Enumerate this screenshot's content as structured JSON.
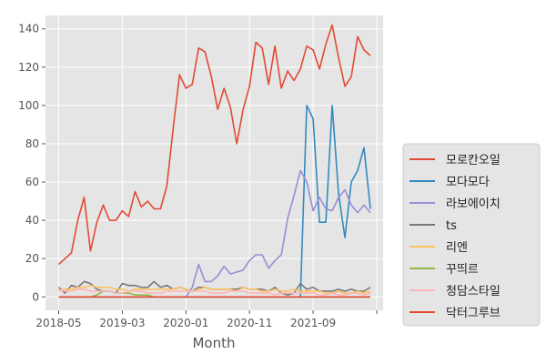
{
  "chart_data": {
    "type": "line",
    "xlabel": "Month",
    "ylabel": "",
    "ylim": [
      -7,
      147
    ],
    "yticks": [
      0,
      20,
      40,
      60,
      80,
      100,
      120,
      140
    ],
    "x": [
      "2018-05",
      "2018-06",
      "2018-07",
      "2018-08",
      "2018-09",
      "2018-10",
      "2018-11",
      "2018-12",
      "2019-01",
      "2019-02",
      "2019-03",
      "2019-04",
      "2019-05",
      "2019-06",
      "2019-07",
      "2019-08",
      "2019-09",
      "2019-10",
      "2019-11",
      "2019-12",
      "2020-01",
      "2020-02",
      "2020-03",
      "2020-04",
      "2020-05",
      "2020-06",
      "2020-07",
      "2020-08",
      "2020-09",
      "2020-10",
      "2020-11",
      "2020-12",
      "2021-01",
      "2021-02",
      "2021-03",
      "2021-04",
      "2021-05",
      "2021-06",
      "2021-07",
      "2021-08",
      "2021-09",
      "2021-10",
      "2021-11",
      "2021-12",
      "2022-01",
      "2022-02",
      "2022-03",
      "2022-04",
      "2022-05",
      "2022-06"
    ],
    "x_tick_labels": [
      {
        "label": "2018-05",
        "index": 0
      },
      {
        "label": "2019-03",
        "index": 10
      },
      {
        "label": "2020-01",
        "index": 20
      },
      {
        "label": "2020-11",
        "index": 30
      },
      {
        "label": "2021-09",
        "index": 40
      },
      {
        "label": "",
        "index": 50
      }
    ],
    "grid": true,
    "legend_position": "right",
    "series": [
      {
        "name": "모로칸오일",
        "color": "#E24A33",
        "values": [
          17,
          20,
          23,
          40,
          52,
          24,
          39,
          48,
          40,
          40,
          45,
          42,
          55,
          47,
          50,
          46,
          46,
          58,
          88,
          116,
          109,
          111,
          130,
          128,
          115,
          98,
          109,
          99,
          80,
          98,
          110,
          133,
          130,
          111,
          131,
          109,
          118,
          113,
          119,
          131,
          129,
          119,
          132,
          142,
          125,
          110,
          115,
          136,
          129,
          126
        ]
      },
      {
        "name": "모다모다",
        "color": "#348ABD",
        "values": [
          0,
          0,
          0,
          0,
          0,
          0,
          0,
          0,
          0,
          0,
          0,
          0,
          0,
          0,
          0,
          0,
          0,
          0,
          0,
          0,
          0,
          0,
          0,
          0,
          0,
          0,
          0,
          0,
          0,
          0,
          0,
          0,
          0,
          0,
          0,
          0,
          0,
          0,
          0,
          100,
          93,
          39,
          39,
          100,
          54,
          31,
          60,
          66,
          78,
          46
        ]
      },
      {
        "name": "라보에이치",
        "color": "#988ED5",
        "values": [
          null,
          null,
          null,
          null,
          null,
          null,
          null,
          null,
          null,
          null,
          null,
          null,
          null,
          null,
          null,
          null,
          null,
          null,
          null,
          null,
          0,
          5,
          17,
          8,
          8,
          11,
          16,
          12,
          13,
          14,
          19,
          22,
          22,
          15,
          19,
          22,
          41,
          53,
          66,
          60,
          45,
          52,
          46,
          45,
          52,
          56,
          48,
          44,
          48,
          44
        ]
      },
      {
        "name": "ts",
        "color": "#777777",
        "values": [
          5,
          2,
          6,
          5,
          8,
          7,
          4,
          3,
          3,
          2,
          7,
          6,
          6,
          5,
          5,
          8,
          5,
          6,
          4,
          5,
          4,
          3,
          5,
          5,
          4,
          4,
          4,
          4,
          4,
          5,
          4,
          4,
          4,
          3,
          5,
          2,
          1,
          2,
          7,
          4,
          5,
          3,
          3,
          3,
          4,
          3,
          4,
          3,
          3,
          5
        ]
      },
      {
        "name": "리엔",
        "color": "#FBC15E",
        "values": [
          3,
          4,
          4,
          5,
          5,
          6,
          5,
          5,
          5,
          4,
          4,
          3,
          4,
          4,
          4,
          4,
          4,
          4,
          4,
          5,
          4,
          3,
          4,
          5,
          4,
          4,
          4,
          4,
          3,
          5,
          4,
          4,
          3,
          3,
          4,
          3,
          3,
          4,
          3,
          3,
          3,
          3,
          2,
          2,
          3,
          2,
          2,
          3,
          2,
          3
        ]
      },
      {
        "name": "꾸띄르",
        "color": "#8EBA42",
        "values": [
          0,
          0,
          0,
          0,
          0,
          0,
          1,
          3,
          3,
          2,
          2,
          2,
          1,
          1,
          1,
          0,
          0,
          0,
          0,
          0,
          0,
          0,
          0,
          0,
          0,
          0,
          0,
          0,
          0,
          0,
          0,
          0,
          0,
          0,
          0,
          0,
          0,
          0,
          0,
          0,
          0,
          0,
          0,
          0,
          0,
          0,
          0,
          0,
          0,
          0
        ]
      },
      {
        "name": "청담스타일",
        "color": "#FFB5B8",
        "values": [
          4,
          3,
          3,
          4,
          4,
          3,
          3,
          3,
          3,
          2,
          2,
          3,
          3,
          3,
          2,
          2,
          2,
          3,
          3,
          3,
          3,
          3,
          3,
          3,
          2,
          2,
          2,
          3,
          3,
          3,
          2,
          2,
          2,
          2,
          1,
          2,
          2,
          2,
          2,
          2,
          2,
          1,
          1,
          2,
          1,
          1,
          2,
          2,
          1,
          2
        ]
      },
      {
        "name": "닥터그루브",
        "color": "#E24A33",
        "values": [
          0,
          0,
          0,
          0,
          0,
          0,
          0,
          0,
          0,
          0,
          0,
          0,
          0,
          0,
          0,
          0,
          0,
          0,
          0,
          0,
          0,
          0,
          0,
          0,
          0,
          0,
          0,
          0,
          0,
          0,
          0,
          0,
          0,
          0,
          0,
          0,
          0,
          0,
          0,
          0,
          0,
          0,
          0,
          0,
          0,
          0,
          0,
          0,
          0,
          0
        ]
      }
    ]
  }
}
